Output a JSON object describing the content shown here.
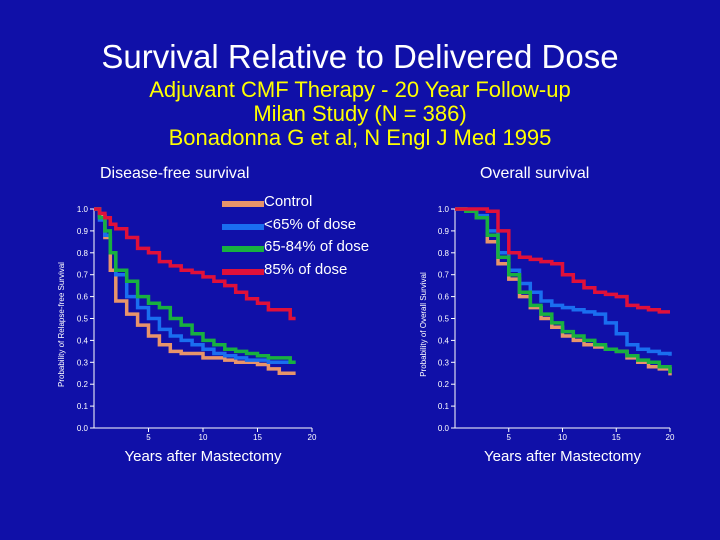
{
  "header": {
    "title": "Survival Relative to Delivered Dose",
    "subtitle_lines": [
      "Adjuvant CMF Therapy - 20 Year Follow-up",
      "Milan Study (N = 386)",
      "Bonadonna G et al, N Engl J Med 1995"
    ]
  },
  "legend": {
    "items": [
      {
        "label": "Control",
        "color": "#e8946a"
      },
      {
        "label": "<65% of dose",
        "color": "#1a6ef0"
      },
      {
        "label": "65-84% of dose",
        "color": "#18b040"
      },
      {
        "label": " 85% of dose",
        "color": "#e0103a"
      }
    ]
  },
  "chart_data": [
    {
      "type": "line",
      "title": "Disease-free survival",
      "xlabel": "Years after Mastectomy",
      "ylabel": "Probability of Relapse-free Survival",
      "xlim": [
        0,
        20
      ],
      "ylim": [
        0,
        1
      ],
      "xticks": [
        "5",
        "10",
        "15",
        "20"
      ],
      "yticks": [
        "0.0",
        "0.1",
        "0.2",
        "0.3",
        "0.4",
        "0.5",
        "0.6",
        "0.7",
        "0.8",
        "0.9",
        "1.0"
      ],
      "grid": false,
      "legend_position": "top-right",
      "series": [
        {
          "name": "Control",
          "color": "#e8946a",
          "x": [
            0,
            0.5,
            1,
            1.5,
            2,
            3,
            4,
            5,
            6,
            7,
            8,
            9,
            10,
            11,
            12,
            13,
            14,
            15,
            16,
            17,
            18,
            18.5
          ],
          "y": [
            1.0,
            0.97,
            0.87,
            0.72,
            0.58,
            0.52,
            0.47,
            0.42,
            0.38,
            0.35,
            0.34,
            0.34,
            0.32,
            0.32,
            0.31,
            0.3,
            0.3,
            0.29,
            0.27,
            0.25,
            0.25,
            0.25
          ]
        },
        {
          "name": "<65% of dose",
          "color": "#1a6ef0",
          "x": [
            0,
            0.5,
            1,
            1.5,
            2,
            3,
            4,
            5,
            6,
            7,
            8,
            9,
            10,
            11,
            12,
            13,
            14,
            15,
            16,
            17,
            18,
            18.5
          ],
          "y": [
            1.0,
            0.95,
            0.88,
            0.8,
            0.7,
            0.6,
            0.55,
            0.5,
            0.45,
            0.42,
            0.4,
            0.38,
            0.36,
            0.34,
            0.33,
            0.32,
            0.31,
            0.31,
            0.3,
            0.3,
            0.3,
            0.3
          ]
        },
        {
          "name": "65-84% of dose",
          "color": "#18b040",
          "x": [
            0,
            0.5,
            1,
            1.5,
            2,
            3,
            4,
            5,
            6,
            7,
            8,
            9,
            10,
            11,
            12,
            13,
            14,
            15,
            16,
            17,
            18,
            18.5
          ],
          "y": [
            1.0,
            0.96,
            0.9,
            0.8,
            0.72,
            0.67,
            0.6,
            0.57,
            0.55,
            0.5,
            0.47,
            0.43,
            0.4,
            0.38,
            0.36,
            0.35,
            0.34,
            0.33,
            0.32,
            0.32,
            0.3,
            0.3
          ]
        },
        {
          "name": " 85% of dose",
          "color": "#e0103a",
          "x": [
            0,
            0.5,
            1,
            1.5,
            2,
            3,
            4,
            5,
            6,
            7,
            8,
            9,
            10,
            11,
            12,
            13,
            14,
            15,
            16,
            17,
            18,
            18.5
          ],
          "y": [
            1.0,
            0.98,
            0.96,
            0.93,
            0.91,
            0.87,
            0.82,
            0.8,
            0.76,
            0.74,
            0.72,
            0.71,
            0.69,
            0.67,
            0.65,
            0.62,
            0.59,
            0.57,
            0.54,
            0.54,
            0.5,
            0.5
          ]
        }
      ]
    },
    {
      "type": "line",
      "title": "Overall survival",
      "xlabel": "Years after Mastectomy",
      "ylabel": "Probability of Overall Survival",
      "xlim": [
        0,
        20
      ],
      "ylim": [
        0,
        1
      ],
      "xticks": [
        "5",
        "10",
        "15",
        "20"
      ],
      "yticks": [
        "0.0",
        "0.1",
        "0.2",
        "0.3",
        "0.4",
        "0.5",
        "0.6",
        "0.7",
        "0.8",
        "0.9",
        "1.0"
      ],
      "grid": false,
      "series": [
        {
          "name": "Control",
          "color": "#e8946a",
          "x": [
            0,
            1,
            2,
            3,
            4,
            5,
            6,
            7,
            8,
            9,
            10,
            11,
            12,
            13,
            14,
            15,
            16,
            17,
            18,
            19,
            20
          ],
          "y": [
            1.0,
            0.99,
            0.96,
            0.85,
            0.75,
            0.68,
            0.6,
            0.55,
            0.5,
            0.46,
            0.42,
            0.4,
            0.38,
            0.37,
            0.36,
            0.35,
            0.32,
            0.3,
            0.28,
            0.27,
            0.24
          ]
        },
        {
          "name": "<65% of dose",
          "color": "#1a6ef0",
          "x": [
            0,
            1,
            2,
            3,
            4,
            5,
            6,
            7,
            8,
            9,
            10,
            11,
            12,
            13,
            14,
            15,
            16,
            17,
            18,
            19,
            20
          ],
          "y": [
            1.0,
            0.99,
            0.97,
            0.9,
            0.8,
            0.72,
            0.66,
            0.62,
            0.58,
            0.56,
            0.55,
            0.54,
            0.53,
            0.52,
            0.48,
            0.43,
            0.38,
            0.36,
            0.35,
            0.34,
            0.33
          ]
        },
        {
          "name": "65-84% of dose",
          "color": "#18b040",
          "x": [
            0,
            1,
            2,
            3,
            4,
            5,
            6,
            7,
            8,
            9,
            10,
            11,
            12,
            13,
            14,
            15,
            16,
            17,
            18,
            19,
            20
          ],
          "y": [
            1.0,
            0.99,
            0.96,
            0.88,
            0.78,
            0.7,
            0.62,
            0.56,
            0.52,
            0.48,
            0.44,
            0.42,
            0.4,
            0.38,
            0.36,
            0.35,
            0.33,
            0.31,
            0.3,
            0.28,
            0.25
          ]
        },
        {
          "name": " 85% of dose",
          "color": "#e0103a",
          "x": [
            0,
            1,
            2,
            3,
            4,
            5,
            6,
            7,
            8,
            9,
            10,
            11,
            12,
            13,
            14,
            15,
            16,
            17,
            18,
            19,
            20
          ],
          "y": [
            1.0,
            1.0,
            1.0,
            0.99,
            0.9,
            0.8,
            0.78,
            0.77,
            0.76,
            0.75,
            0.7,
            0.67,
            0.64,
            0.62,
            0.61,
            0.6,
            0.56,
            0.55,
            0.54,
            0.53,
            0.53
          ]
        }
      ]
    }
  ]
}
